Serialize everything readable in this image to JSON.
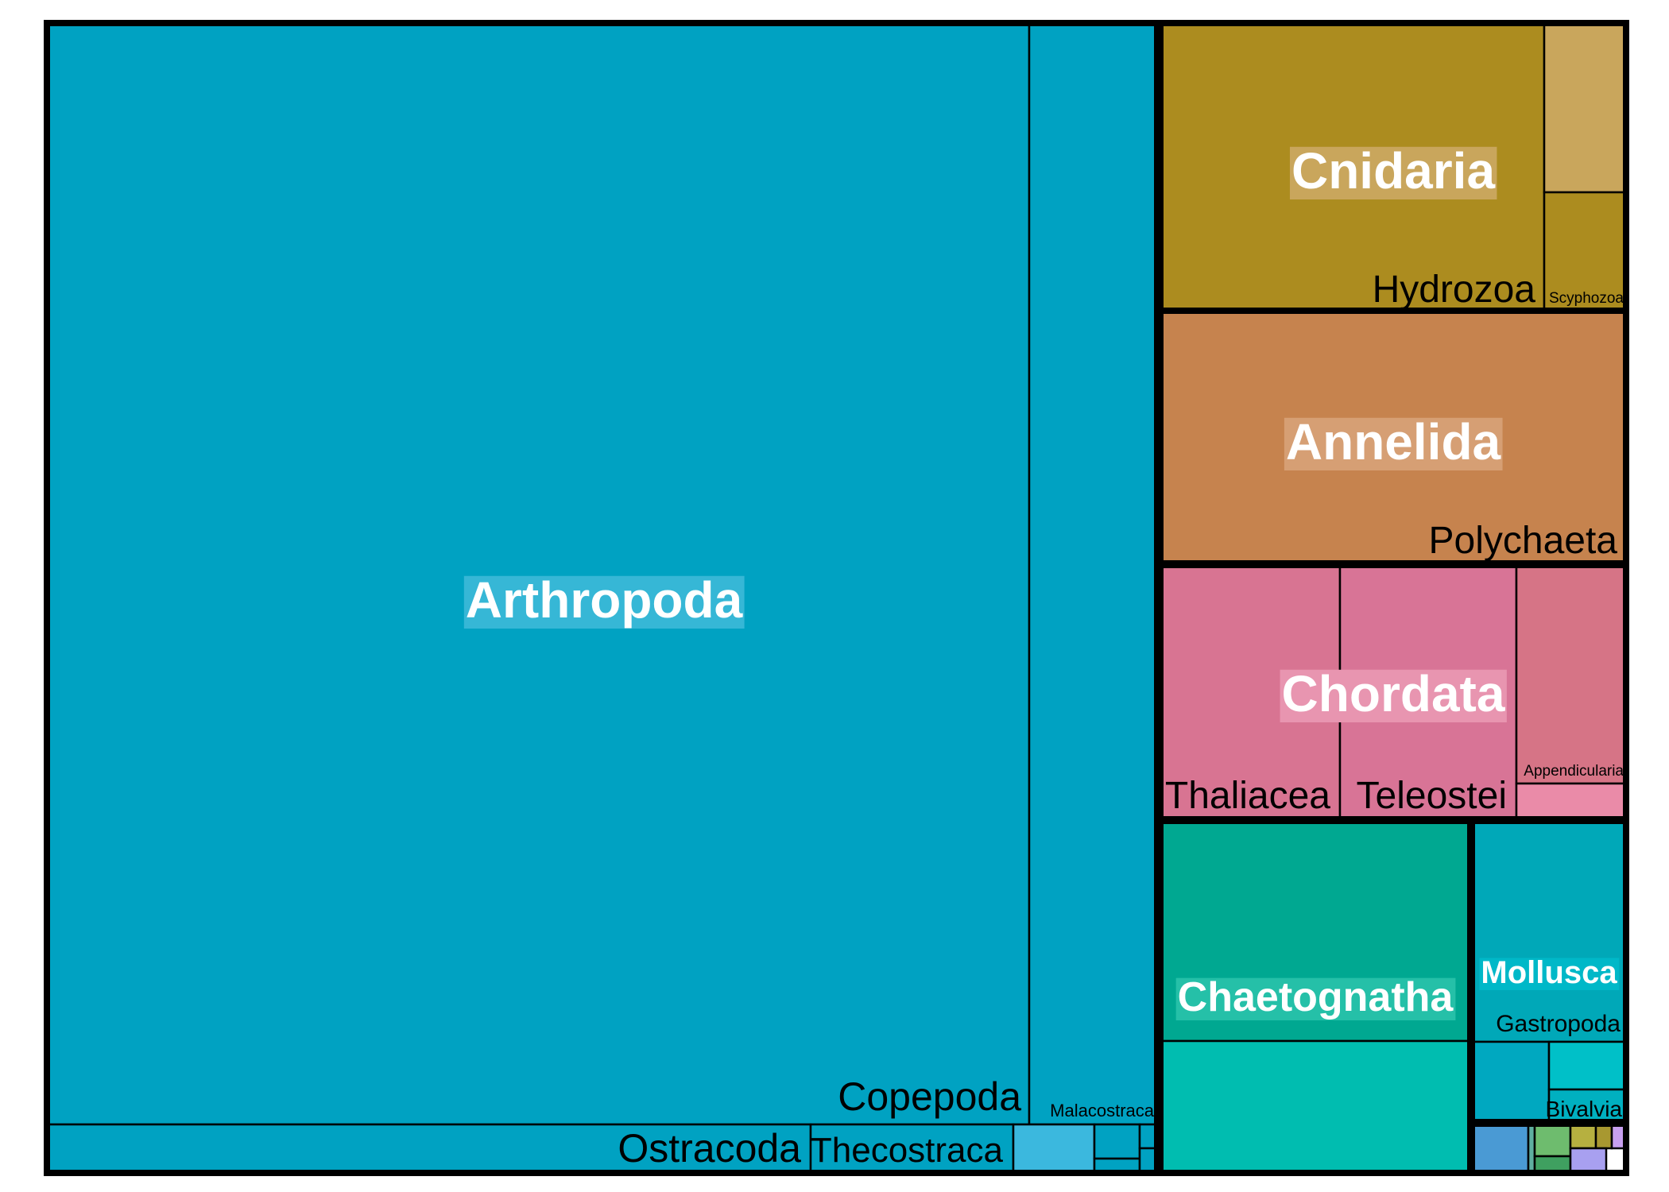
{
  "chart_data": {
    "type": "treemap",
    "title": "",
    "phyla": [
      {
        "name": "Arthropoda",
        "color": "#00A2C2",
        "label_bg": "#36B7D6",
        "classes": [
          {
            "name": "Copepoda",
            "label": "Copepoda"
          },
          {
            "name": "Malacostraca",
            "label": "Malacostraca"
          },
          {
            "name": "Ostracoda",
            "label": "Ostracoda"
          },
          {
            "name": "Thecostraca",
            "label": "Thecostraca"
          },
          {
            "name": "Arthropoda-minor-1",
            "label": ""
          },
          {
            "name": "Arthropoda-minor-2",
            "label": ""
          },
          {
            "name": "Arthropoda-minor-3",
            "label": ""
          },
          {
            "name": "Arthropoda-minor-4",
            "label": ""
          },
          {
            "name": "Arthropoda-minor-5",
            "label": ""
          }
        ]
      },
      {
        "name": "Cnidaria",
        "color": "#AC8C1F",
        "label_bg": "#C9A65C",
        "classes": [
          {
            "name": "Hydrozoa",
            "label": "Hydrozoa"
          },
          {
            "name": "Cnidaria-minor-1",
            "label": ""
          },
          {
            "name": "Scyphozoa",
            "label": "Scyphozoa"
          }
        ]
      },
      {
        "name": "Annelida",
        "color": "#C6834E",
        "label_bg": "#D69F74",
        "classes": [
          {
            "name": "Polychaeta",
            "label": "Polychaeta"
          }
        ]
      },
      {
        "name": "Chordata",
        "color": "#D87492",
        "label_bg": "#E895B0",
        "classes": [
          {
            "name": "Thaliacea",
            "label": "Thaliacea"
          },
          {
            "name": "Teleostei",
            "label": "Teleostei"
          },
          {
            "name": "Appendicularia",
            "label": "Appendicularia"
          },
          {
            "name": "Chordata-minor-1",
            "label": ""
          }
        ]
      },
      {
        "name": "Chaetognatha",
        "color": "#00A891",
        "label_bg": "#25C0A8",
        "classes": [
          {
            "name": "Chaetognatha-class-1",
            "label": ""
          },
          {
            "name": "Chaetognatha-class-2",
            "label": ""
          }
        ]
      },
      {
        "name": "Mollusca",
        "color": "#00A8B8",
        "label_bg": "#00B8C8",
        "classes": [
          {
            "name": "Gastropoda",
            "label": "Gastropoda"
          },
          {
            "name": "Mollusca-minor-1",
            "label": ""
          },
          {
            "name": "Bivalvia",
            "label": "Bivalvia"
          }
        ]
      },
      {
        "name": "Other-phyla",
        "color": "#4A9AD4",
        "label_bg": "",
        "classes": [
          {
            "name": "other-1",
            "label": ""
          },
          {
            "name": "other-2",
            "label": ""
          },
          {
            "name": "other-3",
            "label": ""
          },
          {
            "name": "other-4",
            "label": ""
          },
          {
            "name": "other-5",
            "label": ""
          },
          {
            "name": "other-6",
            "label": ""
          },
          {
            "name": "other-7",
            "label": ""
          }
        ]
      }
    ]
  }
}
